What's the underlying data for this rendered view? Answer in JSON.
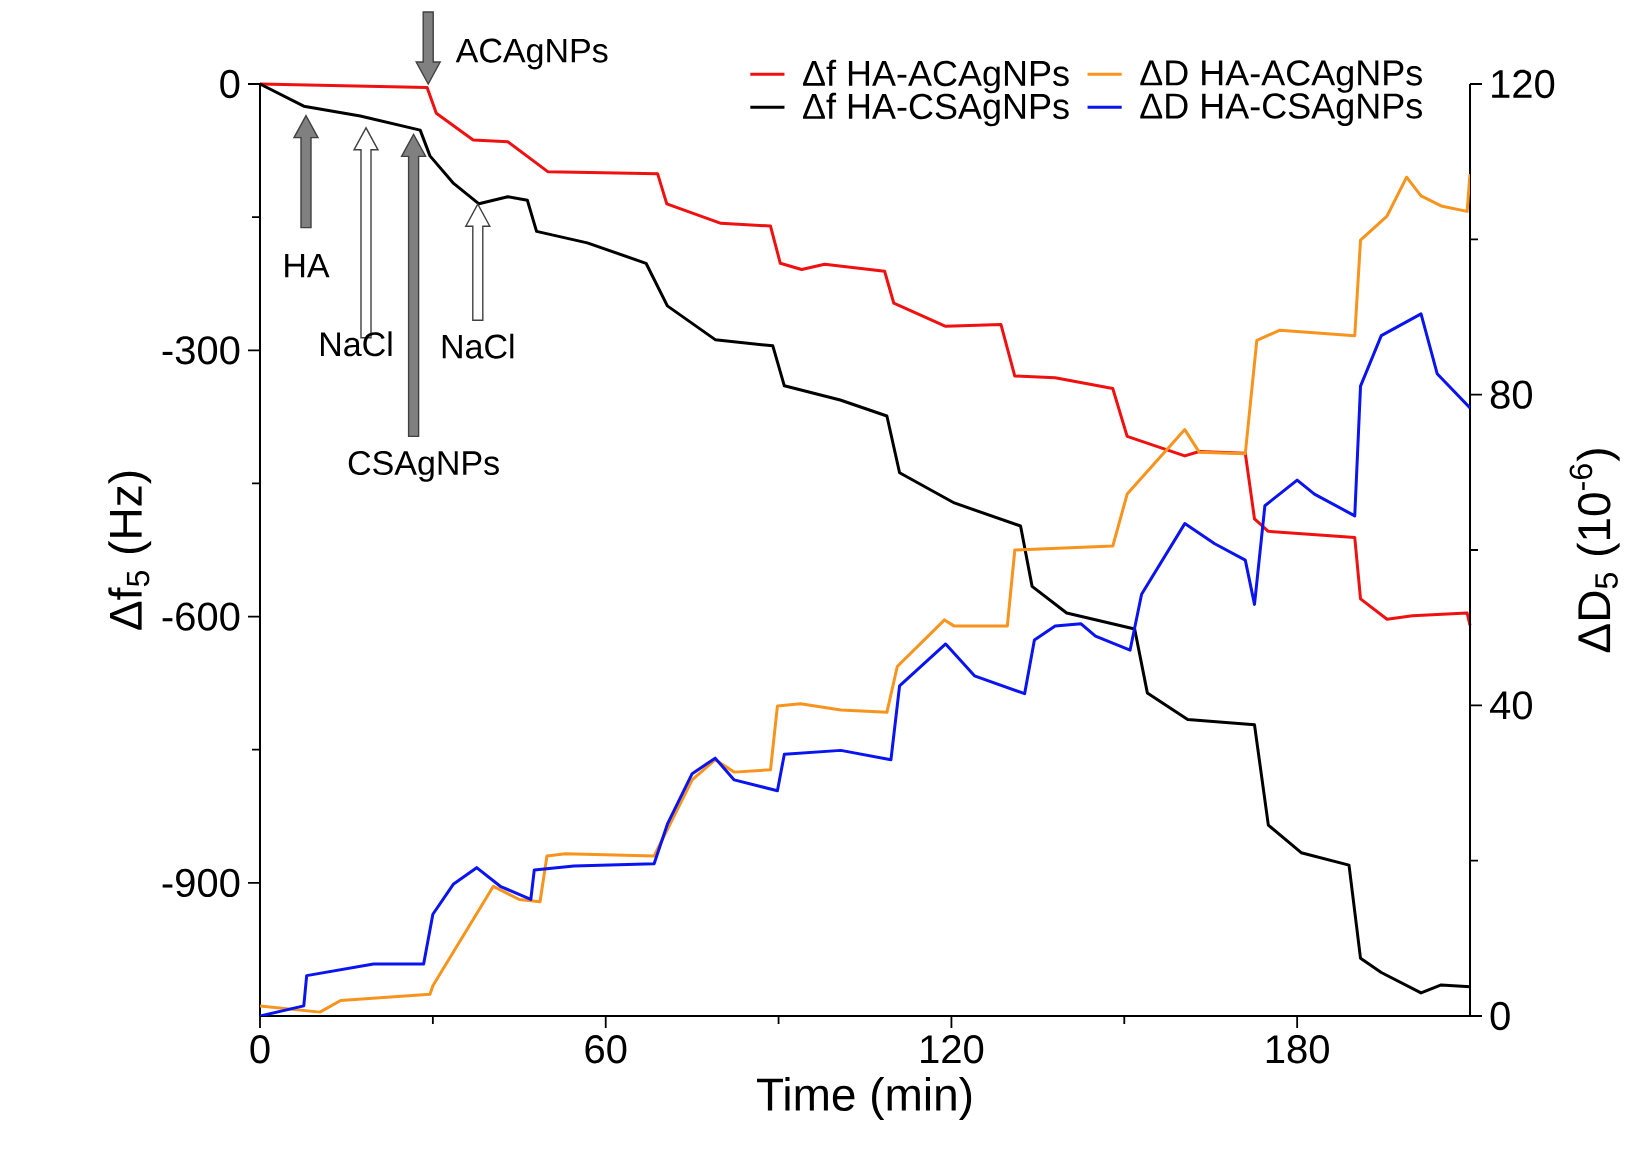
{
  "chart_data": {
    "type": "line",
    "xlabel": "Time (min)",
    "ylabel": "Δf$_{5}$ (Hz)",
    "y2label": "ΔD$_{5}$ (10$^{-6}$)",
    "xlim": [
      0,
      210
    ],
    "xticks": [
      0,
      60,
      120,
      180
    ],
    "ylim": [
      -1050,
      0
    ],
    "yticks": [
      -900,
      -600,
      -300,
      0
    ],
    "y2lim": [
      0,
      120
    ],
    "y2ticks": [
      0,
      40,
      80,
      120
    ],
    "legend": "top right",
    "series": [
      {
        "name": "Δf HA-ACAgNPs",
        "color": "#f01010",
        "x": [
          0,
          29,
          30.6,
          37,
          43,
          50,
          69,
          70.6,
          80,
          88.6,
          90.3,
          94,
          98,
          108.4,
          110,
          119,
          128.6,
          131,
          138,
          148,
          150.5,
          160.5,
          163,
          171,
          172.6,
          175,
          190,
          191,
          195.6,
          200,
          209.5,
          210
        ],
        "values": [
          0,
          -4,
          -33,
          -63,
          -65,
          -99,
          -101,
          -135,
          -157,
          -160,
          -202,
          -209,
          -203,
          -211,
          -247,
          -273,
          -271,
          -329,
          -331,
          -343,
          -397,
          -419,
          -414,
          -416,
          -490,
          -504,
          -511,
          -580,
          -603,
          -599,
          -596,
          -610
        ]
      },
      {
        "name": "ΔD HA-ACAgNPs",
        "color": "#f7941d",
        "axis": "y2",
        "x": [
          0,
          10.4,
          14,
          29.5,
          30,
          40.5,
          45,
          48.6,
          49.8,
          53,
          68.4,
          75,
          79,
          82.3,
          88.6,
          89.8,
          93.8,
          100.8,
          108.8,
          110.6,
          118.8,
          120.5,
          129.7,
          131,
          148,
          150.5,
          160.5,
          163,
          171,
          173,
          177,
          190,
          191,
          195.6,
          199,
          201.5,
          205,
          209.5,
          210
        ],
        "values": [
          1.3,
          0.5,
          2,
          2.8,
          3.9,
          16.7,
          15,
          14.7,
          20.6,
          20.9,
          20.6,
          30.4,
          33,
          31.4,
          31.7,
          39.9,
          40.2,
          39.4,
          39.1,
          45,
          51,
          50.2,
          50.2,
          60,
          60.5,
          67.2,
          75.5,
          72.6,
          72.4,
          87,
          88.3,
          87.6,
          99.9,
          103,
          108,
          105.6,
          104.3,
          103.6,
          108.4
        ]
      },
      {
        "name": "Δf HA-CSAgNPs",
        "color": "#000000",
        "x": [
          0,
          7.6,
          17.4,
          27.8,
          29.5,
          33.6,
          38,
          43,
          46.4,
          48,
          56.8,
          67,
          70.7,
          79,
          89,
          91,
          100.7,
          108.8,
          111,
          120.5,
          132,
          134,
          140,
          151.8,
          154,
          161,
          172.6,
          175,
          180.7,
          189,
          191,
          194.6,
          201.5,
          205,
          210
        ],
        "values": [
          0,
          -25,
          -36,
          -52,
          -81,
          -112,
          -135,
          -127,
          -131,
          -166,
          -179,
          -202,
          -250,
          -288,
          -295,
          -340,
          -356,
          -374,
          -438,
          -472,
          -498,
          -566,
          -596,
          -614,
          -686,
          -716,
          -722,
          -835,
          -866,
          -880,
          -985,
          -1001,
          -1024,
          -1015,
          -1017
        ]
      },
      {
        "name": "ΔD HA-CSAgNPs",
        "color": "#0a14f0",
        "axis": "y2",
        "x": [
          0,
          7.6,
          8.1,
          19.7,
          28.4,
          30,
          33.6,
          37.6,
          41.7,
          47,
          47.6,
          54.5,
          68.4,
          70.7,
          75,
          79,
          82.3,
          89.8,
          91,
          100.8,
          109.5,
          111,
          119,
          124,
          132.7,
          134.4,
          138,
          142.5,
          145,
          151,
          153,
          160.5,
          165.7,
          171,
          172.6,
          174.4,
          180,
          183,
          190,
          191,
          194.6,
          201.5,
          204.3,
          210
        ],
        "values": [
          0,
          1.3,
          5.2,
          6.7,
          6.7,
          13.1,
          17,
          19.1,
          16.7,
          15,
          18.8,
          19.3,
          19.6,
          24.7,
          31.2,
          33.2,
          30.4,
          29,
          33.7,
          34.2,
          33,
          42.5,
          47.9,
          43.8,
          41.5,
          48.4,
          50.2,
          50.5,
          48.9,
          47.1,
          54.3,
          63.4,
          60.8,
          58.7,
          53,
          65.7,
          69,
          67.2,
          64.4,
          81.1,
          87.6,
          90.4,
          82.7,
          78.3
        ]
      }
    ],
    "annotations": [
      "HA",
      "NaCl",
      "CSAgNPs",
      "NaCl",
      "ACAgNPs"
    ]
  }
}
